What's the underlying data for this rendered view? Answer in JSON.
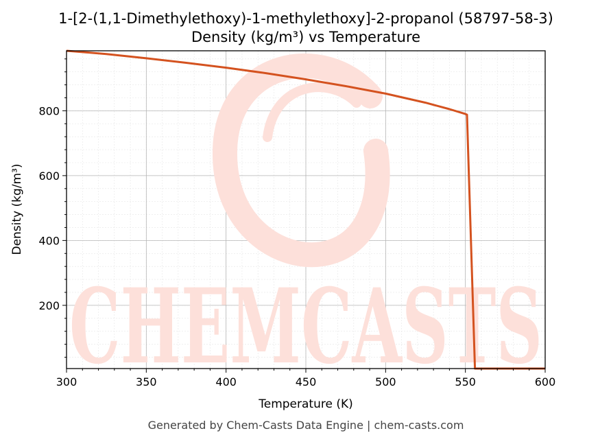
{
  "chart_data": {
    "type": "line",
    "title": "1-[2-(1,1-Dimethylethoxy)-1-methylethoxy]-2-propanol (58797-58-3)",
    "subtitle": "Density (kg/m³) vs Temperature",
    "xlabel": "Temperature (K)",
    "ylabel": "Density (kg/m³)",
    "xlim": [
      300,
      600
    ],
    "ylim": [
      5,
      985
    ],
    "xticks": [
      300,
      350,
      400,
      450,
      500,
      550,
      600
    ],
    "yticks": [
      200,
      400,
      600,
      800
    ],
    "grid": true,
    "line_color": "#d4521f",
    "series": [
      {
        "x": [
          300,
          325,
          350,
          375,
          400,
          425,
          450,
          475,
          500,
          525,
          540,
          550,
          551,
          556,
          557,
          600
        ],
        "y": [
          985,
          975,
          962,
          948,
          933,
          916,
          897,
          876,
          853,
          825,
          805,
          790,
          788,
          5,
          5,
          5
        ]
      }
    ]
  },
  "watermark": {
    "text": "CHEMCASTS",
    "color": "#fde0da"
  },
  "footer": "Generated by Chem-Casts Data Engine | chem-casts.com"
}
